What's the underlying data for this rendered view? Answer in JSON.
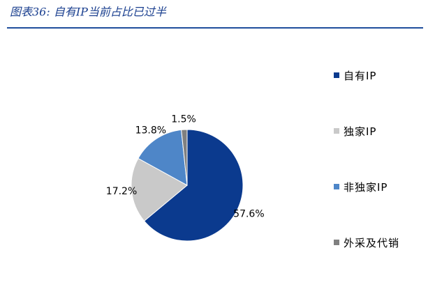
{
  "chart_data": {
    "type": "pie",
    "title": "图表36: 自有IP当前占比已过半",
    "categories": [
      "自有IP",
      "独家IP",
      "非独家IP",
      "外采及代销"
    ],
    "values": [
      57.6,
      17.2,
      13.8,
      1.5
    ],
    "value_labels": [
      "57.6%",
      "17.2%",
      "13.8%",
      "1.5%"
    ],
    "colors": [
      "#0b3a8e",
      "#c9c9c9",
      "#4e86c8",
      "#808080"
    ],
    "legend": "right"
  }
}
